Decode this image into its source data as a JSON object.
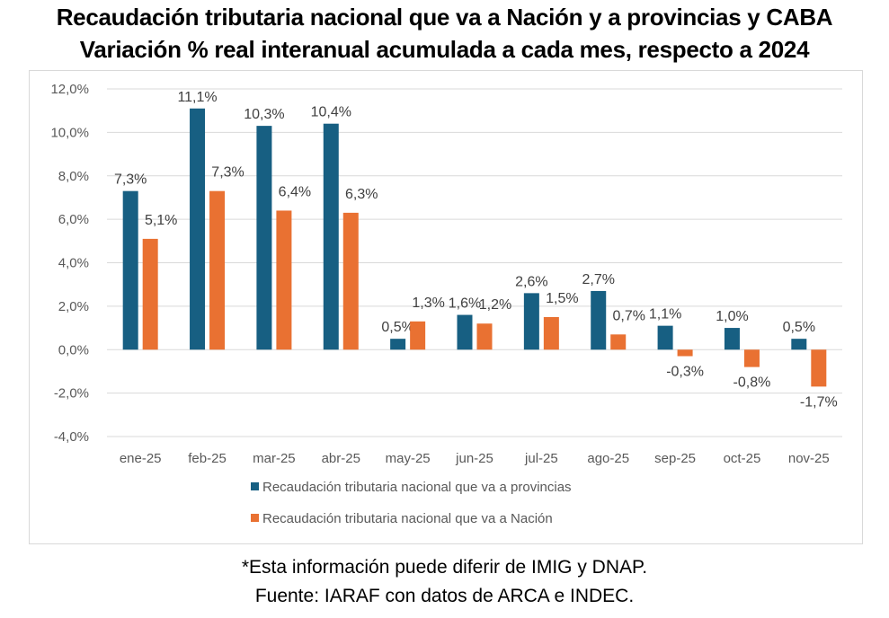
{
  "chart_data": {
    "type": "bar",
    "title": "Recaudación tributaria nacional que va a Nación y a provincias y CABA",
    "subtitle": "Variación % real interanual acumulada a cada mes, respecto a 2024",
    "categories": [
      "ene-25",
      "feb-25",
      "mar-25",
      "abr-25",
      "may-25",
      "jun-25",
      "jul-25",
      "ago-25",
      "sep-25",
      "oct-25",
      "nov-25"
    ],
    "series": [
      {
        "name": "Recaudación tributaria nacional que va a provincias",
        "color": "#175f82",
        "values": [
          7.3,
          11.1,
          10.3,
          10.4,
          0.5,
          1.6,
          2.6,
          2.7,
          1.1,
          1.0,
          0.5
        ],
        "labels": [
          "7,3%",
          "11,1%",
          "10,3%",
          "10,4%",
          "0,5%",
          "1,6%",
          "2,6%",
          "2,7%",
          "1,1%",
          "1,0%",
          "0,5%"
        ]
      },
      {
        "name": "Recaudación tributaria nacional que va a Nación",
        "color": "#e97132",
        "values": [
          5.1,
          7.3,
          6.4,
          6.3,
          1.3,
          1.2,
          1.5,
          0.7,
          -0.3,
          -0.8,
          -1.7
        ],
        "labels": [
          "5,1%",
          "7,3%",
          "6,4%",
          "6,3%",
          "1,3%",
          "1,2%",
          "1,5%",
          "0,7%",
          "-0,3%",
          "-0,8%",
          "-1,7%"
        ]
      }
    ],
    "xlabel": "",
    "ylabel": "",
    "ylim": [
      -4,
      12
    ],
    "yticks": [
      -4,
      -2,
      0,
      2,
      4,
      6,
      8,
      10,
      12
    ],
    "ytick_labels": [
      "-4,0%",
      "-2,0%",
      "0,0%",
      "2,0%",
      "4,0%",
      "6,0%",
      "8,0%",
      "10,0%",
      "12,0%"
    ],
    "grid": true,
    "legend_position": "bottom"
  },
  "footer": {
    "note": "*Esta información puede diferir de IMIG y DNAP.",
    "source": "Fuente: IARAF con datos de ARCA e INDEC."
  }
}
